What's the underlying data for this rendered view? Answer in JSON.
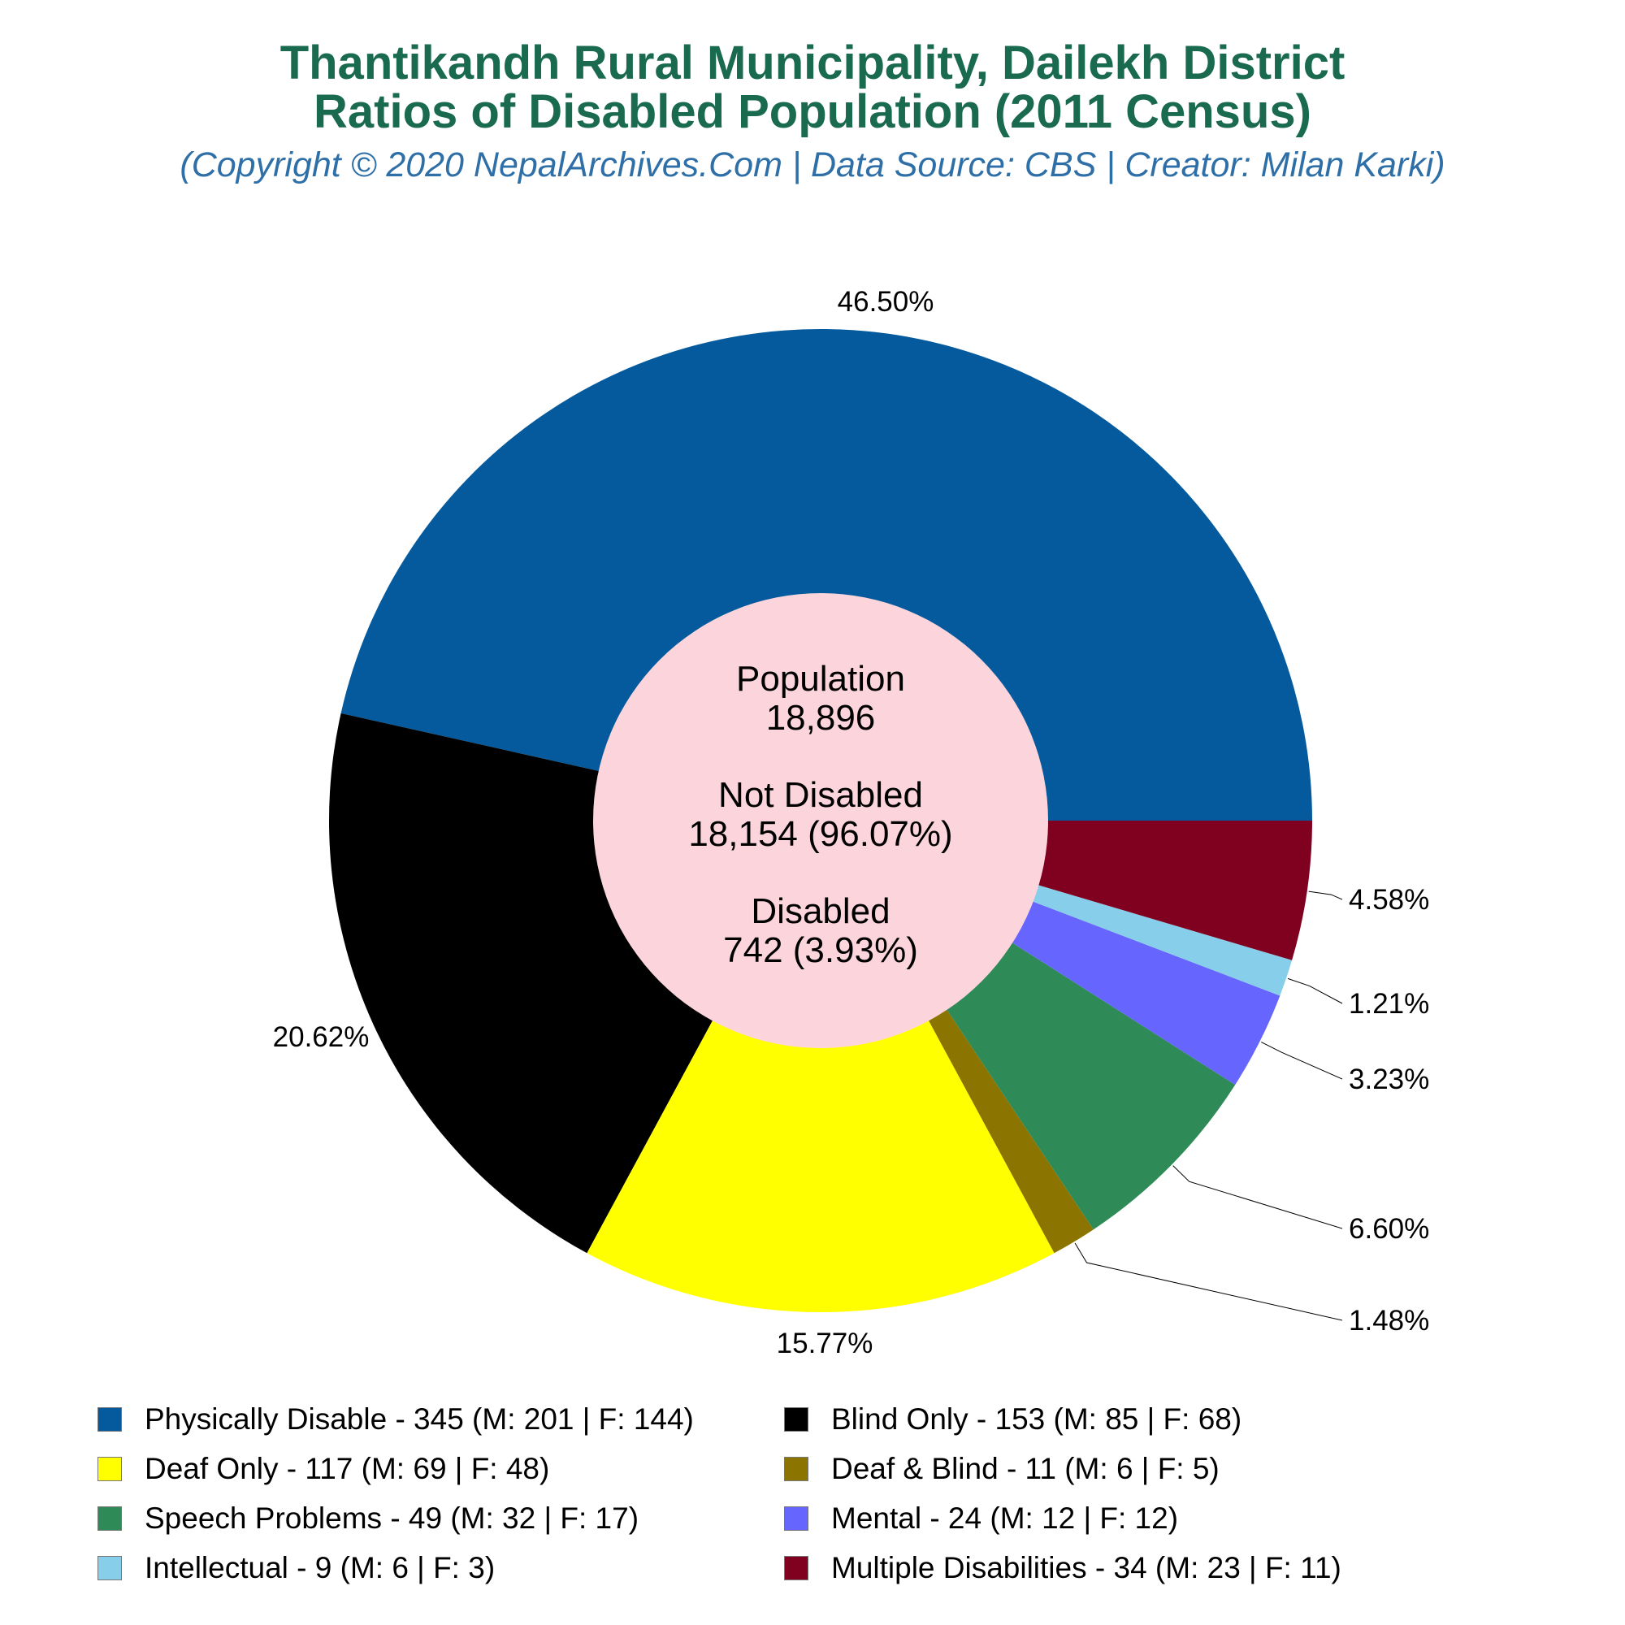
{
  "title": "Thantikandh Rural Municipality, Dailekh District",
  "subtitle_line": "Ratios of Disabled Population (2011 Census)",
  "credit": "(Copyright © 2020 NepalArchives.Com | Data Source: CBS | Creator: Milan Karki)",
  "center": {
    "population_label": "Population",
    "population_value": "18,896",
    "not_disabled_label": "Not Disabled",
    "not_disabled_value": "18,154 (96.07%)",
    "disabled_label": "Disabled",
    "disabled_value": "742 (3.93%)"
  },
  "chart_data": {
    "type": "pie",
    "donut": true,
    "series": [
      {
        "name": "Physically Disable",
        "value": 345,
        "male": 201,
        "female": 144,
        "percent_label": "46.50%",
        "color": "#045a9c",
        "legend": "Physically Disable - 345 (M: 201 | F: 144)"
      },
      {
        "name": "Blind Only",
        "value": 153,
        "male": 85,
        "female": 68,
        "percent_label": "20.62%",
        "color": "#000000",
        "legend": "Blind Only - 153 (M: 85 | F: 68)"
      },
      {
        "name": "Deaf Only",
        "value": 117,
        "male": 69,
        "female": 48,
        "percent_label": "15.77%",
        "color": "#ffff00",
        "legend": "Deaf Only - 117 (M: 69 | F: 48)"
      },
      {
        "name": "Deaf & Blind",
        "value": 11,
        "male": 6,
        "female": 5,
        "percent_label": "1.48%",
        "color": "#8b7500",
        "legend": "Deaf & Blind - 11 (M: 6 | F: 5)"
      },
      {
        "name": "Speech Problems",
        "value": 49,
        "male": 32,
        "female": 17,
        "percent_label": "6.60%",
        "color": "#2e8b57",
        "legend": "Speech Problems - 49 (M: 32 | F: 17)"
      },
      {
        "name": "Mental",
        "value": 24,
        "male": 12,
        "female": 12,
        "percent_label": "3.23%",
        "color": "#6666ff",
        "legend": "Mental - 24 (M: 12 | F: 12)"
      },
      {
        "name": "Intellectual",
        "value": 9,
        "male": 6,
        "female": 3,
        "percent_label": "1.21%",
        "color": "#87ceeb",
        "legend": "Intellectual - 9 (M: 6 | F: 3)"
      },
      {
        "name": "Multiple Disabilities",
        "value": 34,
        "male": 23,
        "female": 11,
        "percent_label": "4.58%",
        "color": "#800020",
        "legend": "Multiple Disabilities - 34 (M: 23 | F: 11)"
      }
    ],
    "legend_order": [
      "Physically Disable",
      "Blind Only",
      "Deaf Only",
      "Deaf & Blind",
      "Speech Problems",
      "Mental",
      "Intellectual",
      "Multiple Disabilities"
    ],
    "center_color": "#fcd5dc",
    "legend_placement": "bottom"
  }
}
